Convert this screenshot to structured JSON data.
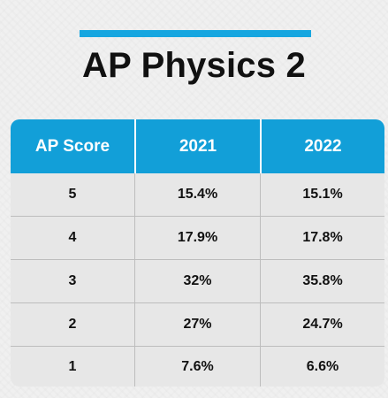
{
  "title": "AP Physics 2",
  "accent_color": "#16a6e0",
  "header_color": "#129fd8",
  "chart_data": {
    "type": "table",
    "columns": [
      "AP Score",
      "2021",
      "2022"
    ],
    "rows": [
      [
        "5",
        "15.4%",
        "15.1%"
      ],
      [
        "4",
        "17.9%",
        "17.8%"
      ],
      [
        "3",
        "32%",
        "35.8%"
      ],
      [
        "2",
        "27%",
        "24.7%"
      ],
      [
        "1",
        "7.6%",
        "6.6%"
      ]
    ]
  }
}
